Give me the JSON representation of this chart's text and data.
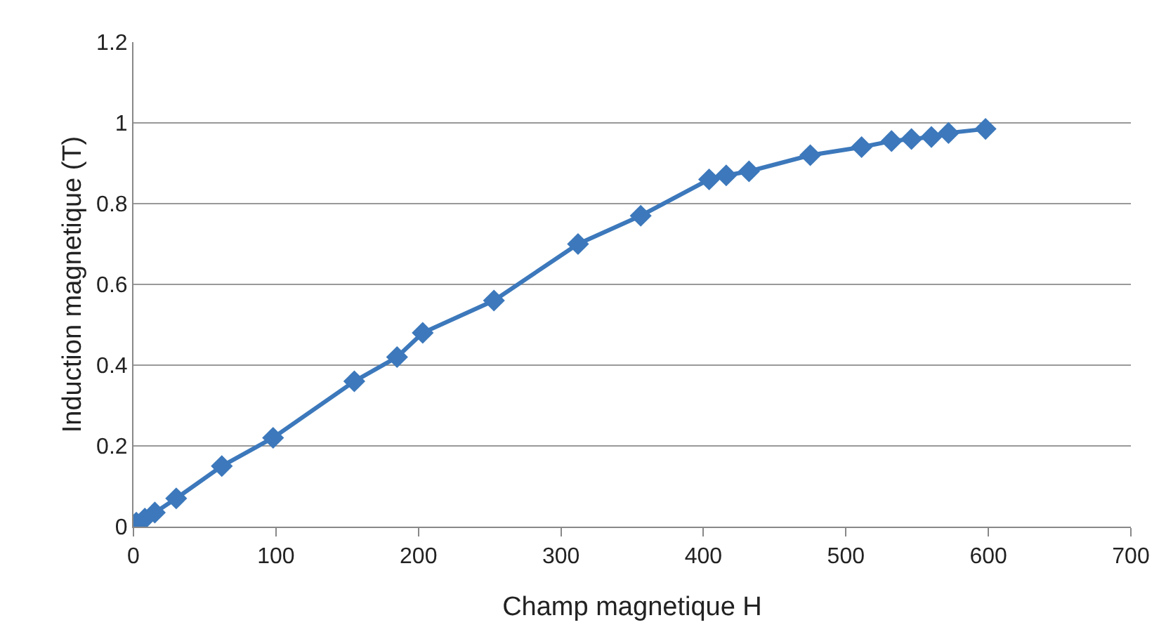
{
  "chart_data": {
    "type": "line",
    "xlabel": "Champ magnetique H",
    "ylabel": "Induction magnetique (T)",
    "x": [
      2,
      8,
      15,
      30,
      62,
      98,
      155,
      185,
      203,
      253,
      312,
      356,
      404,
      416,
      432,
      475,
      511,
      532,
      546,
      560,
      572,
      598
    ],
    "series": [
      {
        "color": "#3c78bb",
        "values": [
          0.01,
          0.02,
          0.035,
          0.07,
          0.15,
          0.22,
          0.36,
          0.42,
          0.48,
          0.56,
          0.7,
          0.77,
          0.86,
          0.87,
          0.88,
          0.92,
          0.94,
          0.955,
          0.96,
          0.965,
          0.975,
          0.985
        ]
      }
    ],
    "xlim": [
      0,
      700
    ],
    "xticks": [
      0,
      100,
      200,
      300,
      400,
      500,
      600,
      700
    ],
    "ylim": [
      0,
      1.2
    ],
    "yticks": [
      0,
      0.2,
      0.4,
      0.6,
      0.8,
      1,
      1.2
    ],
    "grid": "y",
    "marker": "diamond",
    "line_style": "solid"
  }
}
